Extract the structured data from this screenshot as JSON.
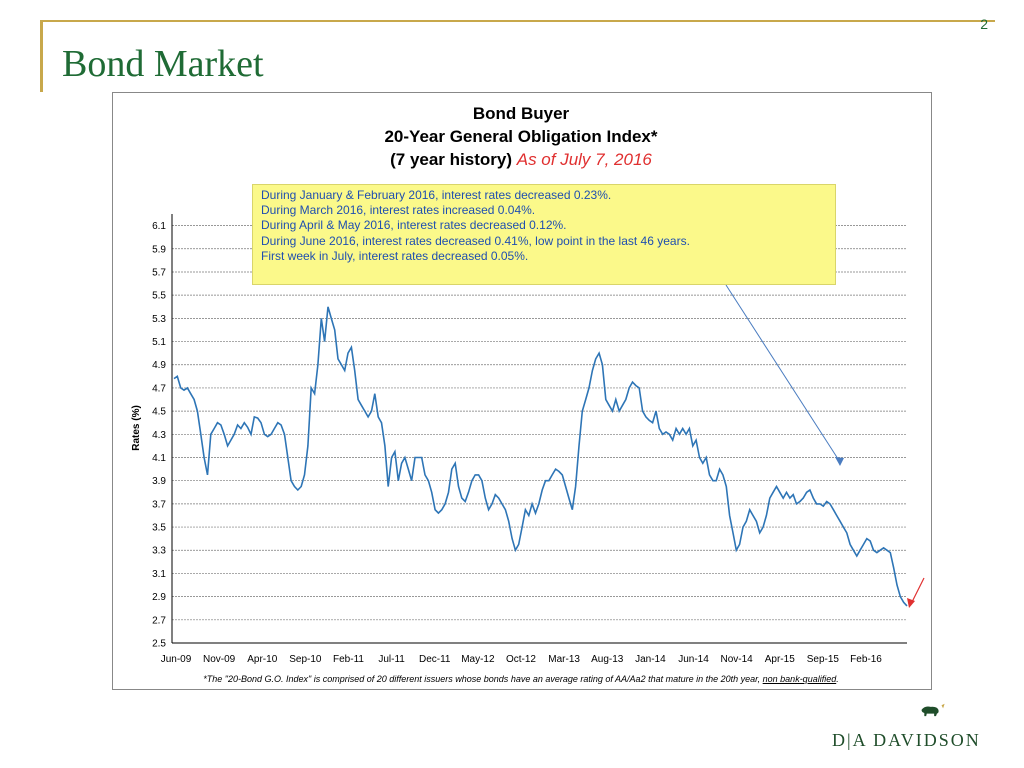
{
  "slide": {
    "title": "Bond Market",
    "page_number": "2"
  },
  "chart_header": {
    "line1": "Bond Buyer",
    "line2": "20-Year General Obligation Index*",
    "line3_black": "(7 year history)",
    "line3_red": "As of July 7, 2016"
  },
  "notes": [
    "During January & February 2016, interest rates decreased 0.23%.",
    "During March 2016, interest rates increased 0.04%.",
    "During April & May 2016, interest rates decreased 0.12%.",
    "During June 2016, interest rates decreased 0.41%, low point in the last 46 years.",
    "First week in July, interest rates decreased 0.05%."
  ],
  "footnote": {
    "pre": "*The \"20-Bond G.O. Index\" is comprised of 20 different issuers whose bonds have an average rating of AA/Aa2  that mature in the 20th year, ",
    "underlined": "non bank-qualified",
    "post": "."
  },
  "logo": {
    "text": "D|A DAVIDSON"
  },
  "colors": {
    "line": "#2e75b6",
    "title_green": "#1f6b35",
    "accent_gold": "#c8a84b",
    "note_bg": "#fbf98a",
    "note_text": "#1f4fb0",
    "red_arrow": "#e03030"
  },
  "chart_data": {
    "type": "line",
    "ylabel": "Rates (%)",
    "ylim": [
      2.5,
      6.2
    ],
    "yticks": [
      "2.5",
      "2.7",
      "2.9",
      "3.1",
      "3.3",
      "3.5",
      "3.7",
      "3.9",
      "4.1",
      "4.3",
      "4.5",
      "4.7",
      "4.9",
      "5.1",
      "5.3",
      "5.5",
      "5.7",
      "5.9",
      "6.1"
    ],
    "xtick_labels": [
      "Jun-09",
      "Nov-09",
      "Apr-10",
      "Sep-10",
      "Feb-11",
      "Jul-11",
      "Dec-11",
      "May-12",
      "Oct-12",
      "Mar-13",
      "Aug-13",
      "Jan-14",
      "Jun-14",
      "Nov-14",
      "Apr-15",
      "Sep-15",
      "Feb-16"
    ],
    "grid": true,
    "series": [
      {
        "values": [
          4.78,
          4.8,
          4.7,
          4.68,
          4.7,
          4.65,
          4.6,
          4.5,
          4.3,
          4.1,
          3.95,
          4.3,
          4.35,
          4.4,
          4.38,
          4.3,
          4.2,
          4.25,
          4.3,
          4.38,
          4.35,
          4.4,
          4.36,
          4.3,
          4.45,
          4.44,
          4.4,
          4.3,
          4.28,
          4.3,
          4.35,
          4.4,
          4.38,
          4.3,
          4.1,
          3.9,
          3.85,
          3.82,
          3.85,
          3.95,
          4.2,
          4.7,
          4.65,
          4.9,
          5.3,
          5.1,
          5.4,
          5.3,
          5.2,
          4.95,
          4.9,
          4.85,
          5.0,
          5.05,
          4.85,
          4.6,
          4.55,
          4.5,
          4.45,
          4.5,
          4.65,
          4.45,
          4.4,
          4.2,
          3.85,
          4.1,
          4.15,
          3.9,
          4.05,
          4.1,
          4.0,
          3.9,
          4.1,
          4.1,
          4.1,
          3.95,
          3.9,
          3.8,
          3.65,
          3.62,
          3.65,
          3.7,
          3.8,
          4.0,
          4.05,
          3.85,
          3.75,
          3.72,
          3.8,
          3.9,
          3.95,
          3.95,
          3.9,
          3.75,
          3.65,
          3.7,
          3.78,
          3.75,
          3.7,
          3.65,
          3.55,
          3.4,
          3.3,
          3.35,
          3.5,
          3.65,
          3.6,
          3.7,
          3.62,
          3.7,
          3.82,
          3.9,
          3.9,
          3.95,
          4.0,
          3.98,
          3.95,
          3.85,
          3.75,
          3.65,
          3.85,
          4.2,
          4.5,
          4.6,
          4.7,
          4.85,
          4.95,
          5.0,
          4.9,
          4.6,
          4.55,
          4.5,
          4.6,
          4.5,
          4.55,
          4.6,
          4.7,
          4.75,
          4.72,
          4.7,
          4.5,
          4.45,
          4.42,
          4.4,
          4.5,
          4.35,
          4.3,
          4.32,
          4.3,
          4.25,
          4.35,
          4.3,
          4.35,
          4.3,
          4.35,
          4.2,
          4.25,
          4.1,
          4.05,
          4.1,
          3.95,
          3.9,
          3.9,
          4.0,
          3.95,
          3.85,
          3.6,
          3.45,
          3.3,
          3.35,
          3.5,
          3.55,
          3.65,
          3.6,
          3.55,
          3.45,
          3.5,
          3.6,
          3.75,
          3.8,
          3.85,
          3.8,
          3.75,
          3.8,
          3.75,
          3.78,
          3.7,
          3.72,
          3.75,
          3.8,
          3.82,
          3.75,
          3.7,
          3.7,
          3.68,
          3.72,
          3.7,
          3.65,
          3.6,
          3.55,
          3.5,
          3.45,
          3.35,
          3.3,
          3.25,
          3.3,
          3.35,
          3.4,
          3.38,
          3.3,
          3.28,
          3.3,
          3.32,
          3.3,
          3.28,
          3.15,
          3.0,
          2.9,
          2.85,
          2.82
        ]
      }
    ]
  }
}
